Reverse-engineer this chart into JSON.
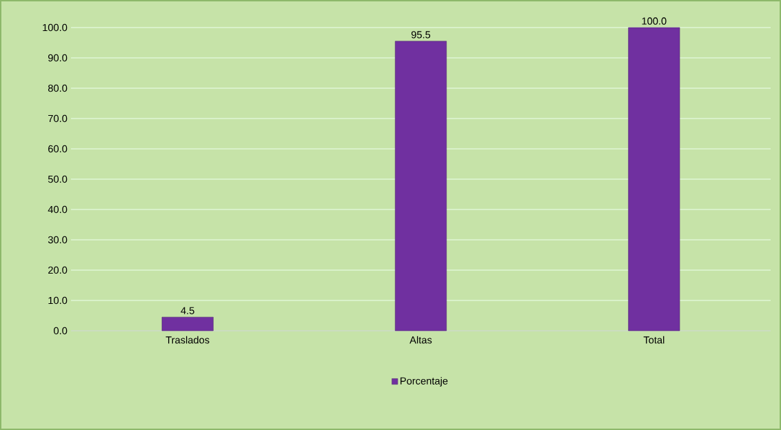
{
  "chart_data": {
    "type": "bar",
    "categories": [
      "Traslados",
      "Altas",
      "Total"
    ],
    "series": [
      {
        "name": "Porcentaje",
        "color": "#7030a0",
        "values": [
          4.5,
          95.5,
          100
        ]
      }
    ],
    "value_labels": [
      "4.5",
      "95.5",
      "100.0"
    ],
    "ylim": [
      0,
      100
    ],
    "yticks": [
      {
        "value": 0,
        "label": "0.0"
      },
      {
        "value": 10,
        "label": "10.0"
      },
      {
        "value": 20,
        "label": "20.0"
      },
      {
        "value": 30,
        "label": "30.0"
      },
      {
        "value": 40,
        "label": "40.0"
      },
      {
        "value": 50,
        "label": "50.0"
      },
      {
        "value": 60,
        "label": "60.0"
      },
      {
        "value": 70,
        "label": "70.0"
      },
      {
        "value": 80,
        "label": "80.0"
      },
      {
        "value": 90,
        "label": "90.0"
      },
      {
        "value": 100,
        "label": "100.0"
      }
    ],
    "grid": "y",
    "legend": "bottom"
  }
}
